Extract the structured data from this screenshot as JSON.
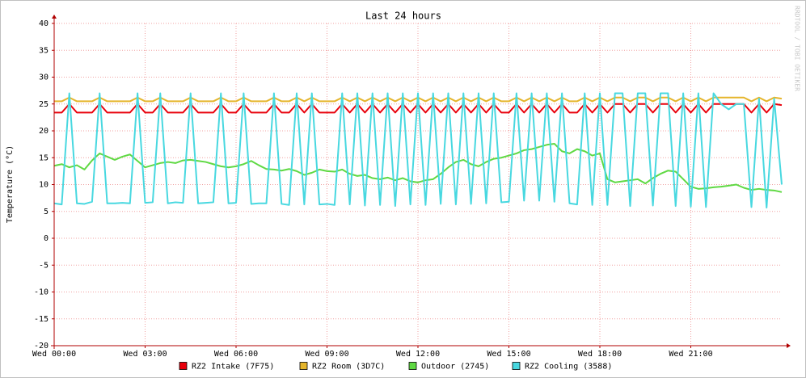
{
  "chart_data": {
    "type": "line",
    "title": "Last 24 hours",
    "y_label": "Temperature (°C)",
    "watermark": "RRDTOOL / TOBI OETIKER",
    "x": [
      0,
      0.25,
      0.5,
      0.75,
      1,
      1.25,
      1.5,
      1.75,
      2,
      2.25,
      2.5,
      2.75,
      3,
      3.25,
      3.5,
      3.75,
      4,
      4.25,
      4.5,
      4.75,
      5,
      5.25,
      5.5,
      5.75,
      6,
      6.25,
      6.5,
      6.75,
      7,
      7.25,
      7.5,
      7.75,
      8,
      8.25,
      8.5,
      8.75,
      9,
      9.25,
      9.5,
      9.75,
      10,
      10.25,
      10.5,
      10.75,
      11,
      11.25,
      11.5,
      11.75,
      12,
      12.25,
      12.5,
      12.75,
      13,
      13.25,
      13.5,
      13.75,
      14,
      14.25,
      14.5,
      14.75,
      15,
      15.25,
      15.5,
      15.75,
      16,
      16.25,
      16.5,
      16.75,
      17,
      17.25,
      17.5,
      17.75,
      18,
      18.25,
      18.5,
      18.75,
      19,
      19.25,
      19.5,
      19.75,
      20,
      20.25,
      20.5,
      20.75,
      21,
      21.25,
      21.5,
      21.75,
      22,
      22.25,
      22.5,
      22.75,
      23,
      23.25,
      23.5,
      23.75,
      24
    ],
    "xlim": [
      0,
      24
    ],
    "xticks": [
      {
        "value": 0,
        "label": "Wed 00:00"
      },
      {
        "value": 3,
        "label": "Wed 03:00"
      },
      {
        "value": 6,
        "label": "Wed 06:00"
      },
      {
        "value": 9,
        "label": "Wed 09:00"
      },
      {
        "value": 12,
        "label": "Wed 12:00"
      },
      {
        "value": 15,
        "label": "Wed 15:00"
      },
      {
        "value": 18,
        "label": "Wed 18:00"
      },
      {
        "value": 21,
        "label": "Wed 21:00"
      }
    ],
    "ylim": [
      -20,
      40
    ],
    "yticks": [
      -20,
      -15,
      -10,
      -5,
      0,
      5,
      10,
      15,
      20,
      25,
      30,
      35,
      40
    ],
    "grid": true,
    "legend": "bottom",
    "series": [
      {
        "name": "RZ2 Intake (7F75)",
        "color": "#e8000b",
        "values": [
          23.4,
          23.4,
          25,
          23.4,
          23.4,
          23.4,
          25,
          23.4,
          23.4,
          23.4,
          23.4,
          25,
          23.4,
          23.4,
          25,
          23.4,
          23.4,
          23.4,
          25,
          23.4,
          23.4,
          23.4,
          25,
          23.4,
          23.4,
          25,
          23.4,
          23.4,
          23.4,
          25,
          23.4,
          23.4,
          25,
          23.4,
          25,
          23.4,
          23.4,
          23.4,
          25,
          23.4,
          25,
          23.4,
          25,
          23.4,
          25,
          23.4,
          25,
          23.4,
          25,
          23.4,
          25,
          23.4,
          25,
          23.4,
          25,
          23.4,
          25,
          23.4,
          25,
          23.4,
          23.4,
          25,
          23.4,
          25,
          23.4,
          25,
          23.4,
          25,
          23.4,
          23.4,
          25,
          23.4,
          25,
          23.4,
          25,
          25,
          23.4,
          25,
          25,
          23.4,
          25,
          25,
          23.4,
          25,
          23.4,
          25,
          23.4,
          25,
          25,
          25,
          25,
          25,
          23.4,
          25,
          23.4,
          25,
          24.8
        ]
      },
      {
        "name": "RZ2 Room (3D7C)",
        "color": "#e5b52b",
        "values": [
          25.5,
          25.5,
          26.2,
          25.5,
          25.5,
          25.5,
          26.2,
          25.5,
          25.5,
          25.5,
          25.5,
          26.2,
          25.5,
          25.5,
          26.2,
          25.5,
          25.5,
          25.5,
          26.2,
          25.5,
          25.5,
          25.5,
          26.2,
          25.5,
          25.5,
          26.2,
          25.5,
          25.5,
          25.5,
          26.2,
          25.5,
          25.5,
          26.2,
          25.5,
          26.2,
          25.5,
          25.5,
          25.5,
          26.2,
          25.5,
          26.2,
          25.5,
          26.2,
          25.5,
          26.2,
          25.5,
          26.2,
          25.5,
          26.2,
          25.5,
          26.2,
          25.5,
          26.2,
          25.5,
          26.2,
          25.5,
          26.2,
          25.5,
          26.2,
          25.5,
          25.5,
          26.2,
          25.5,
          26.2,
          25.5,
          26.2,
          25.5,
          26.2,
          25.5,
          25.5,
          26.2,
          25.5,
          26.2,
          25.5,
          26.2,
          26.2,
          25.5,
          26.2,
          26.2,
          25.5,
          26.2,
          26.2,
          25.5,
          26.2,
          25.5,
          26.2,
          25.5,
          26.2,
          26.2,
          26.2,
          26.2,
          26.2,
          25.5,
          26.2,
          25.5,
          26.2,
          26
        ]
      },
      {
        "name": "Outdoor (2745)",
        "color": "#5fd943",
        "values": [
          13.5,
          13.8,
          13.2,
          13.6,
          12.8,
          14.5,
          15.8,
          15.2,
          14.6,
          15.2,
          15.6,
          14.4,
          13.2,
          13.6,
          14.0,
          14.2,
          14.0,
          14.5,
          14.6,
          14.4,
          14.2,
          13.8,
          13.4,
          13.2,
          13.4,
          13.8,
          14.4,
          13.6,
          12.9,
          12.8,
          12.6,
          12.9,
          12.5,
          11.8,
          12.2,
          12.8,
          12.5,
          12.4,
          12.8,
          12.0,
          11.6,
          11.8,
          11.2,
          11.0,
          11.3,
          10.8,
          11.2,
          10.6,
          10.4,
          10.8,
          11.0,
          12.0,
          13.2,
          14.2,
          14.6,
          13.8,
          13.4,
          14.2,
          14.8,
          15.0,
          15.4,
          15.8,
          16.4,
          16.6,
          17.0,
          17.4,
          17.6,
          16.2,
          15.8,
          16.6,
          16.2,
          15.4,
          15.8,
          11.0,
          10.4,
          10.6,
          10.8,
          11.0,
          10.2,
          11.2,
          12.0,
          12.6,
          12.4,
          11.0,
          9.6,
          9.2,
          9.3,
          9.5,
          9.6,
          9.8,
          10.0,
          9.4,
          9.0,
          9.2,
          9.0,
          8.9,
          8.6
        ]
      },
      {
        "name": "RZ2 Cooling (3588)",
        "color": "#48d8e0",
        "values": [
          6.5,
          6.3,
          27,
          6.5,
          6.4,
          6.8,
          27,
          6.5,
          6.5,
          6.6,
          6.5,
          27,
          6.6,
          6.7,
          27,
          6.5,
          6.7,
          6.6,
          27,
          6.5,
          6.6,
          6.7,
          27,
          6.5,
          6.6,
          27,
          6.4,
          6.5,
          6.5,
          27,
          6.4,
          6.2,
          27,
          6.3,
          27,
          6.3,
          6.4,
          6.2,
          27,
          6.3,
          27,
          6.1,
          27,
          6.2,
          27,
          6.0,
          27,
          6.3,
          27,
          6.2,
          27,
          6.4,
          27,
          6.3,
          27,
          6.4,
          27,
          6.5,
          27,
          6.7,
          6.8,
          27,
          7.0,
          27,
          7.0,
          27,
          6.8,
          27,
          6.5,
          6.3,
          27,
          6.2,
          27,
          6.2,
          27,
          27,
          6.0,
          27,
          27,
          6.1,
          27,
          27,
          6.0,
          27,
          5.9,
          27,
          5.8,
          27,
          25,
          24,
          25,
          25,
          5.8,
          26,
          5.7,
          26,
          10
        ]
      }
    ]
  }
}
